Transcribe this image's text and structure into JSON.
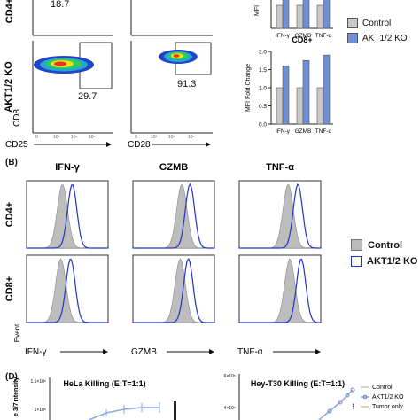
{
  "flow": {
    "row_label_top": "CD4+",
    "row_label_bottom": "AKT1/2 KO",
    "y_axis_label": "CD8",
    "x_axis_left": "CD25",
    "x_axis_right": "CD28",
    "top_left_value": "18.7",
    "bottom_left_value": "29.7",
    "bottom_right_value": "91.3"
  },
  "bar_legend": {
    "items": [
      {
        "name": "Control",
        "color": "#c8c8c8"
      },
      {
        "name": "AKT1/2 KO",
        "color": "#6f8fd6"
      }
    ]
  },
  "histograms": {
    "panel_label": "(B)",
    "col_titles": [
      "IFN-γ",
      "GZMB",
      "TNF-α"
    ],
    "row_labels": [
      "CD4+",
      "CD8+"
    ],
    "y_label_bottom": "Event",
    "x_labels": [
      "IFN-γ",
      "GZMB",
      "TNF-α"
    ],
    "legend": [
      {
        "name": "Control",
        "style": "filled grey"
      },
      {
        "name": "AKT1/2 KO",
        "style": "blue outline"
      }
    ]
  },
  "killing": {
    "panel_label": "(D)",
    "left_title": "HeLa Killing (E:T=1:1)",
    "right_title": "Hey-T30 Killing (E:T=1:1)",
    "left_y_label": "e 3/7 ntensity",
    "left_ticks": [
      "1.5×10⁵",
      "1×10⁵"
    ],
    "right_tick": "4×10⁵",
    "right_tick2": "6×10⁵",
    "legend": [
      "Control",
      "AKT1/2 KO",
      "Tumor only"
    ],
    "stars": "***"
  },
  "chart_data": [
    {
      "type": "bar",
      "title": "",
      "ylabel": "MFI",
      "categories": [
        "IFN-γ",
        "GZMB",
        "TNF-α"
      ],
      "series": [
        {
          "name": "Control",
          "values": [
            1.0,
            1.0,
            1.0
          ]
        },
        {
          "name": "AKT1/2 KO",
          "values": [
            1.5,
            1.5,
            1.5
          ]
        }
      ],
      "ylim": [
        0,
        1.5
      ]
    },
    {
      "type": "bar",
      "title": "CD8+",
      "ylabel": "MFI Fold Change",
      "categories": [
        "IFN-γ",
        "GZMB",
        "TNF-α"
      ],
      "series": [
        {
          "name": "Control",
          "values": [
            1.0,
            1.0,
            1.0
          ]
        },
        {
          "name": "AKT1/2 KO",
          "values": [
            1.6,
            1.75,
            1.9
          ]
        }
      ],
      "yticks": [
        "0.0",
        "0.5",
        "1.0",
        "1.5",
        "2.0"
      ],
      "ylim": [
        0,
        2.0
      ]
    }
  ]
}
